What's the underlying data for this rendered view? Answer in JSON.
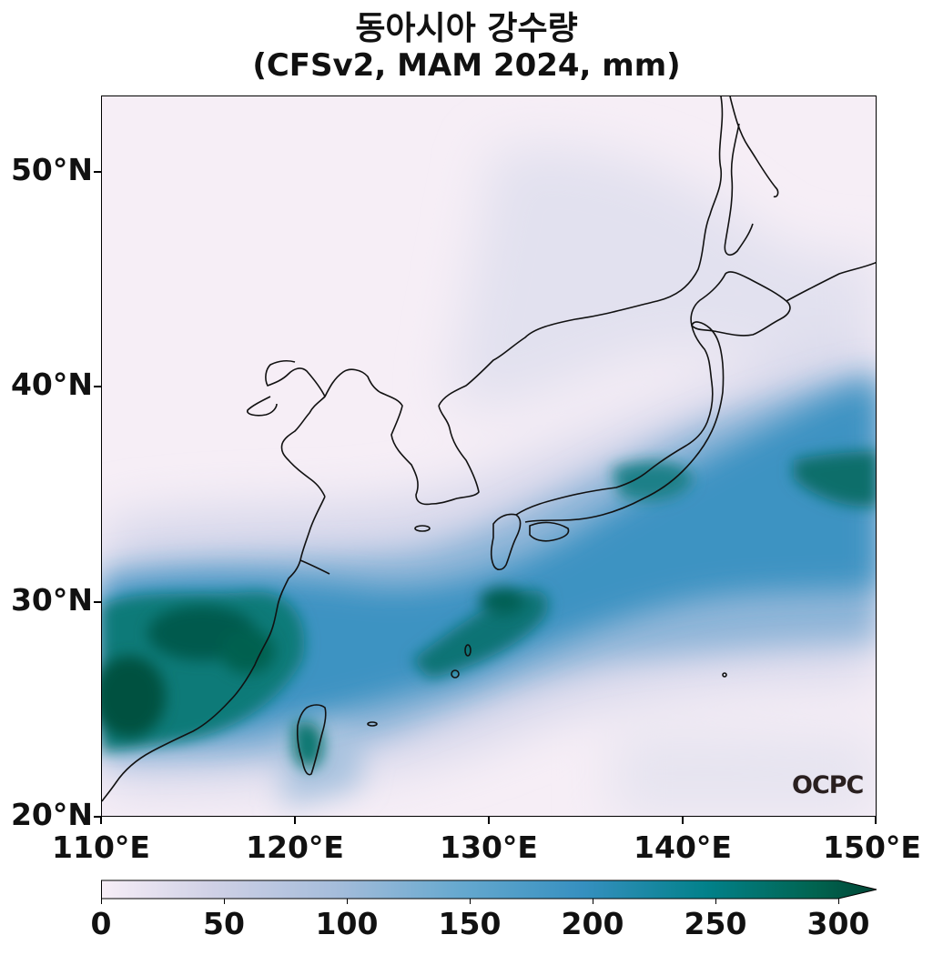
{
  "title": {
    "line1": "동아시아 강수량",
    "line2": "(CFSv2, MAM 2024, mm)"
  },
  "axes": {
    "lat_ticks": [
      "50°N",
      "40°N",
      "30°N",
      "20°N"
    ],
    "lon_ticks": [
      "110°E",
      "120°E",
      "130°E",
      "140°E",
      "150°E"
    ],
    "lat_range": [
      20,
      53.5
    ],
    "lon_range": [
      110,
      150
    ]
  },
  "colorbar": {
    "ticks": [
      "0",
      "50",
      "100",
      "150",
      "200",
      "250",
      "300"
    ],
    "range": [
      0,
      300
    ],
    "extend": "max",
    "colors": [
      "#f7eef7",
      "#d0d1e6",
      "#a6bddb",
      "#67a9cf",
      "#3690c0",
      "#02818a",
      "#016450",
      "#014636"
    ]
  },
  "logo": "OCPC"
}
